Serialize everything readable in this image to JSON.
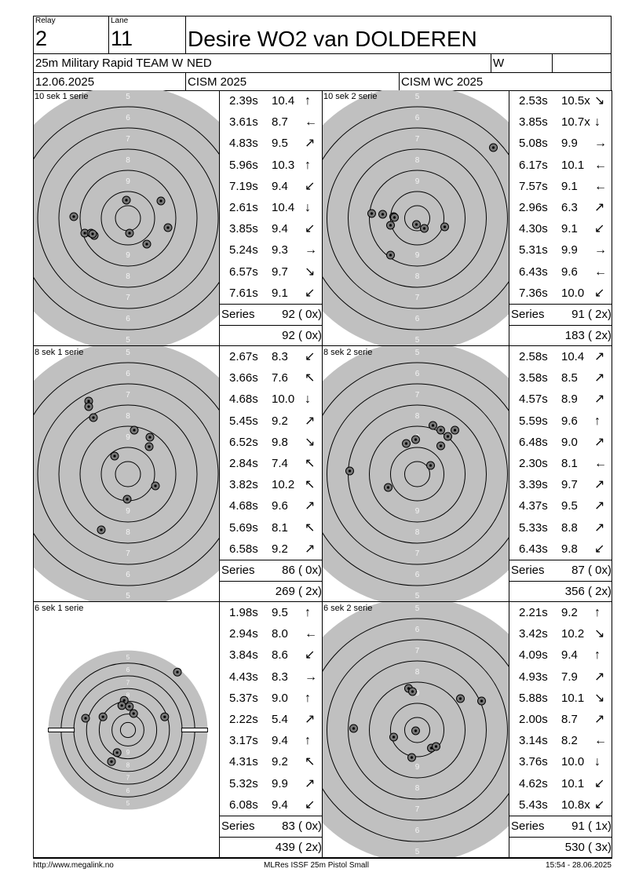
{
  "header": {
    "relay_label": "Relay",
    "relay": "2",
    "lane_label": "Lane",
    "lane": "11",
    "name": "Desire WO2 van DOLDEREN",
    "event": "25m Military Rapid TEAM W",
    "nation": "NED",
    "gender": "W",
    "date": "12.06.2025",
    "competition": "CISM 2025",
    "match": "CISM WC 2025"
  },
  "series_label": "Series",
  "ring_numbers": [
    5,
    6,
    7,
    8,
    9
  ],
  "series": [
    {
      "label": "10 sek 1 serie",
      "shots": [
        [
          "2.39s",
          "10.4",
          "↑"
        ],
        [
          "3.61s",
          "8.7",
          "←"
        ],
        [
          "4.83s",
          "9.5",
          "↗"
        ],
        [
          "5.96s",
          "10.3",
          "↑"
        ],
        [
          "7.19s",
          "9.4",
          "↙"
        ],
        [
          "2.61s",
          "10.4",
          "↓"
        ],
        [
          "3.85s",
          "9.4",
          "↙"
        ],
        [
          "5.24s",
          "9.3",
          "→"
        ],
        [
          "6.57s",
          "9.7",
          "↘"
        ],
        [
          "7.61s",
          "9.1",
          "↙"
        ]
      ],
      "impacts": [
        [
          -2,
          -23
        ],
        [
          42,
          -22
        ],
        [
          -69,
          -2
        ],
        [
          51,
          12
        ],
        [
          -55,
          19
        ],
        [
          -47,
          19
        ],
        [
          -43,
          22
        ],
        [
          2,
          19
        ],
        [
          24,
          33
        ],
        [
          -45,
          20
        ]
      ],
      "series_total": "92 ( 0x)",
      "running_total": "92 ( 0x)"
    },
    {
      "label": "10 sek 2 serie",
      "shots": [
        [
          "2.53s",
          "10.5x",
          "↘"
        ],
        [
          "3.85s",
          "10.7x",
          "↓"
        ],
        [
          "5.08s",
          "9.9",
          "→"
        ],
        [
          "6.17s",
          "10.1",
          "←"
        ],
        [
          "7.57s",
          "9.1",
          "←"
        ],
        [
          "2.96s",
          "6.3",
          "↗"
        ],
        [
          "4.30s",
          "9.1",
          "↙"
        ],
        [
          "5.31s",
          "9.9",
          "→"
        ],
        [
          "6.43s",
          "9.6",
          "←"
        ],
        [
          "7.36s",
          "10.0",
          "↙"
        ]
      ],
      "impacts": [
        [
          97,
          -90
        ],
        [
          -58,
          -6
        ],
        [
          -44,
          -5
        ],
        [
          -30,
          -2
        ],
        [
          -34,
          9
        ],
        [
          -1,
          8
        ],
        [
          9,
          13
        ],
        [
          35,
          11
        ],
        [
          -34,
          47
        ],
        [
          -29,
          -1
        ]
      ],
      "series_total": "91 ( 2x)",
      "running_total": "183 ( 2x)"
    },
    {
      "label": "8 sek 1 serie",
      "shots": [
        [
          "2.67s",
          "8.3",
          "↙"
        ],
        [
          "3.66s",
          "7.6",
          "↖"
        ],
        [
          "4.68s",
          "10.0",
          "↓"
        ],
        [
          "5.45s",
          "9.2",
          "↗"
        ],
        [
          "6.52s",
          "9.8",
          "↘"
        ],
        [
          "2.84s",
          "7.4",
          "↖"
        ],
        [
          "3.82s",
          "10.2",
          "↖"
        ],
        [
          "4.68s",
          "9.6",
          "↗"
        ],
        [
          "5.69s",
          "8.1",
          "↖"
        ],
        [
          "6.58s",
          "9.2",
          "↗"
        ]
      ],
      "impacts": [
        [
          -50,
          -93
        ],
        [
          -50,
          -86
        ],
        [
          -44,
          -72
        ],
        [
          8,
          -56
        ],
        [
          28,
          -47
        ],
        [
          27,
          -35
        ],
        [
          -17,
          -23
        ],
        [
          35,
          15
        ],
        [
          -1,
          32
        ],
        [
          -34,
          71
        ]
      ],
      "series_total": "86 ( 0x)",
      "running_total": "269 ( 2x)"
    },
    {
      "label": "8 sek 2 serie",
      "shots": [
        [
          "2.58s",
          "10.4",
          "↗"
        ],
        [
          "3.58s",
          "8.5",
          "↗"
        ],
        [
          "4.57s",
          "8.9",
          "↗"
        ],
        [
          "5.59s",
          "9.6",
          "↑"
        ],
        [
          "6.48s",
          "9.0",
          "↗"
        ],
        [
          "2.30s",
          "8.1",
          "←"
        ],
        [
          "3.39s",
          "9.7",
          "↗"
        ],
        [
          "4.37s",
          "9.5",
          "↗"
        ],
        [
          "5.33s",
          "8.8",
          "↗"
        ],
        [
          "6.43s",
          "9.8",
          "↙"
        ]
      ],
      "impacts": [
        [
          20,
          -62
        ],
        [
          30,
          -56
        ],
        [
          48,
          -56
        ],
        [
          39,
          -48
        ],
        [
          -2,
          -44
        ],
        [
          -14,
          -39
        ],
        [
          30,
          -36
        ],
        [
          17,
          -11
        ],
        [
          -86,
          -4
        ],
        [
          -37,
          17
        ]
      ],
      "series_total": "87 ( 0x)",
      "running_total": "356 ( 2x)"
    },
    {
      "label": "6 sek 1 serie",
      "shots": [
        [
          "1.98s",
          "9.5",
          "↑"
        ],
        [
          "2.94s",
          "8.0",
          "←"
        ],
        [
          "3.84s",
          "8.6",
          "↙"
        ],
        [
          "4.43s",
          "8.3",
          "→"
        ],
        [
          "5.37s",
          "9.0",
          "↑"
        ],
        [
          "2.22s",
          "5.4",
          "↗"
        ],
        [
          "3.17s",
          "9.4",
          "↑"
        ],
        [
          "4.31s",
          "9.2",
          "↖"
        ],
        [
          "5.32s",
          "9.9",
          "↗"
        ],
        [
          "6.08s",
          "9.4",
          "↙"
        ]
      ],
      "impacts": [
        [
          105,
          -123
        ],
        [
          -8,
          -63
        ],
        [
          -13,
          -52
        ],
        [
          3,
          -50
        ],
        [
          12,
          -35
        ],
        [
          -90,
          -25
        ],
        [
          -53,
          -28
        ],
        [
          78,
          -28
        ],
        [
          -23,
          48
        ],
        [
          -35,
          67
        ]
      ],
      "series_total": "83 ( 0x)",
      "running_total": "439 ( 2x)"
    },
    {
      "label": "6 sek 2 serie",
      "shots": [
        [
          "2.21s",
          "9.2",
          "↑"
        ],
        [
          "3.42s",
          "10.2",
          "↘"
        ],
        [
          "4.09s",
          "9.4",
          "↑"
        ],
        [
          "4.93s",
          "7.9",
          "↗"
        ],
        [
          "5.88s",
          "10.1",
          "↘"
        ],
        [
          "2.00s",
          "8.7",
          "↗"
        ],
        [
          "3.14s",
          "8.2",
          "←"
        ],
        [
          "3.76s",
          "10.0",
          "↓"
        ],
        [
          "4.62s",
          "10.1",
          "↙"
        ],
        [
          "5.43s",
          "10.8x",
          "↙"
        ]
      ],
      "impacts": [
        [
          -11,
          -53
        ],
        [
          -6,
          -49
        ],
        [
          55,
          -40
        ],
        [
          82,
          -37
        ],
        [
          -81,
          -2
        ],
        [
          -30,
          9
        ],
        [
          -2,
          1
        ],
        [
          18,
          23
        ],
        [
          24,
          21
        ],
        [
          -7,
          35
        ]
      ],
      "series_total": "91 ( 1x)",
      "running_total": "530 ( 3x)"
    }
  ],
  "footer": {
    "left": "http://www.megalink.no",
    "center": "MLRes ISSF 25m Pistol Small",
    "right": "15:54 - 28.06.2025"
  }
}
